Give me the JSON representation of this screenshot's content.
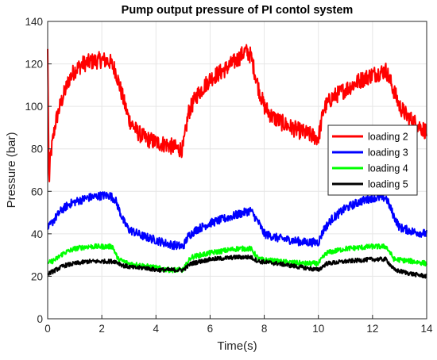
{
  "chart_data": {
    "type": "line",
    "title": "Pump output pressure of PI contol system",
    "xlabel": "Time(s)",
    "ylabel": "Pressure (bar)",
    "xlim": [
      0,
      14
    ],
    "ylim": [
      0,
      140
    ],
    "xticks": [
      0,
      2,
      4,
      6,
      8,
      10,
      12,
      14
    ],
    "yticks": [
      0,
      20,
      40,
      60,
      80,
      100,
      120,
      140
    ],
    "grid": true,
    "legend_position": "right",
    "series": [
      {
        "name": "loading 2",
        "color": "#ff0000",
        "noise": 4.0,
        "x": [
          0,
          0.05,
          0.1,
          0.2,
          0.3,
          0.5,
          0.8,
          1.0,
          1.3,
          1.6,
          2.0,
          2.3,
          2.5,
          2.8,
          3.0,
          3.3,
          3.6,
          4.0,
          4.4,
          4.8,
          5.0,
          5.2,
          5.5,
          6.0,
          6.5,
          7.0,
          7.3,
          7.5,
          7.8,
          8.0,
          8.3,
          8.7,
          9.0,
          9.4,
          9.8,
          10.0,
          10.2,
          10.5,
          11.0,
          11.5,
          12.0,
          12.3,
          12.5,
          12.8,
          13.0,
          13.3,
          13.6,
          14.0
        ],
        "y": [
          127,
          63,
          76,
          85,
          93,
          102,
          113,
          117,
          120,
          121,
          122,
          121,
          117,
          103,
          94,
          88,
          85,
          83,
          82,
          80,
          80,
          97,
          105,
          113,
          117,
          122,
          126,
          124,
          108,
          100,
          95,
          92,
          90,
          88,
          86,
          85,
          99,
          104,
          108,
          112,
          115,
          116,
          117,
          107,
          100,
          95,
          92,
          88
        ]
      },
      {
        "name": "loading 3",
        "color": "#0000ff",
        "noise": 2.0,
        "x": [
          0,
          0.2,
          0.5,
          0.8,
          1.0,
          1.5,
          2.0,
          2.3,
          2.5,
          2.8,
          3.0,
          3.5,
          4.0,
          4.5,
          5.0,
          5.2,
          5.5,
          6.0,
          6.5,
          7.0,
          7.5,
          7.8,
          8.0,
          8.5,
          9.0,
          9.5,
          10.0,
          10.2,
          10.5,
          11.0,
          11.5,
          12.0,
          12.5,
          12.8,
          13.0,
          13.5,
          14.0
        ],
        "y": [
          42,
          46,
          51,
          54,
          55,
          57,
          58,
          58,
          56,
          46,
          42,
          39,
          37,
          35,
          34,
          39,
          42,
          45,
          47,
          49,
          51,
          45,
          40,
          38,
          37,
          36,
          36,
          42,
          47,
          52,
          55,
          57,
          57,
          48,
          43,
          41,
          40
        ]
      },
      {
        "name": "loading 4",
        "color": "#00ff00",
        "noise": 1.2,
        "x": [
          0,
          0.3,
          0.6,
          1.0,
          1.5,
          2.0,
          2.4,
          2.6,
          3.0,
          3.5,
          4.0,
          4.5,
          5.0,
          5.3,
          6.0,
          7.0,
          7.5,
          7.8,
          8.5,
          9.5,
          10.0,
          10.3,
          11.0,
          12.0,
          12.5,
          12.8,
          13.5,
          14.0
        ],
        "y": [
          26,
          28,
          31,
          33,
          34,
          34,
          34,
          28,
          26,
          25,
          24,
          23,
          23,
          29,
          31,
          33,
          33,
          28,
          27,
          26,
          26,
          31,
          33,
          34,
          34,
          28,
          27,
          26
        ]
      },
      {
        "name": "loading 5",
        "color": "#000000",
        "noise": 1.0,
        "x": [
          0,
          0.3,
          0.6,
          1.0,
          1.5,
          2.0,
          2.5,
          2.8,
          3.2,
          3.6,
          4.0,
          4.5,
          5.0,
          5.3,
          6.0,
          7.0,
          7.5,
          7.8,
          8.5,
          9.5,
          10.0,
          10.3,
          11.0,
          12.0,
          12.5,
          12.8,
          13.5,
          14.0
        ],
        "y": [
          21,
          23,
          25,
          26,
          27,
          27,
          27,
          25,
          24,
          24,
          23,
          23,
          23,
          26,
          28,
          29,
          29,
          27,
          26,
          24,
          23,
          26,
          27,
          28,
          28,
          23,
          21,
          20
        ]
      }
    ]
  }
}
